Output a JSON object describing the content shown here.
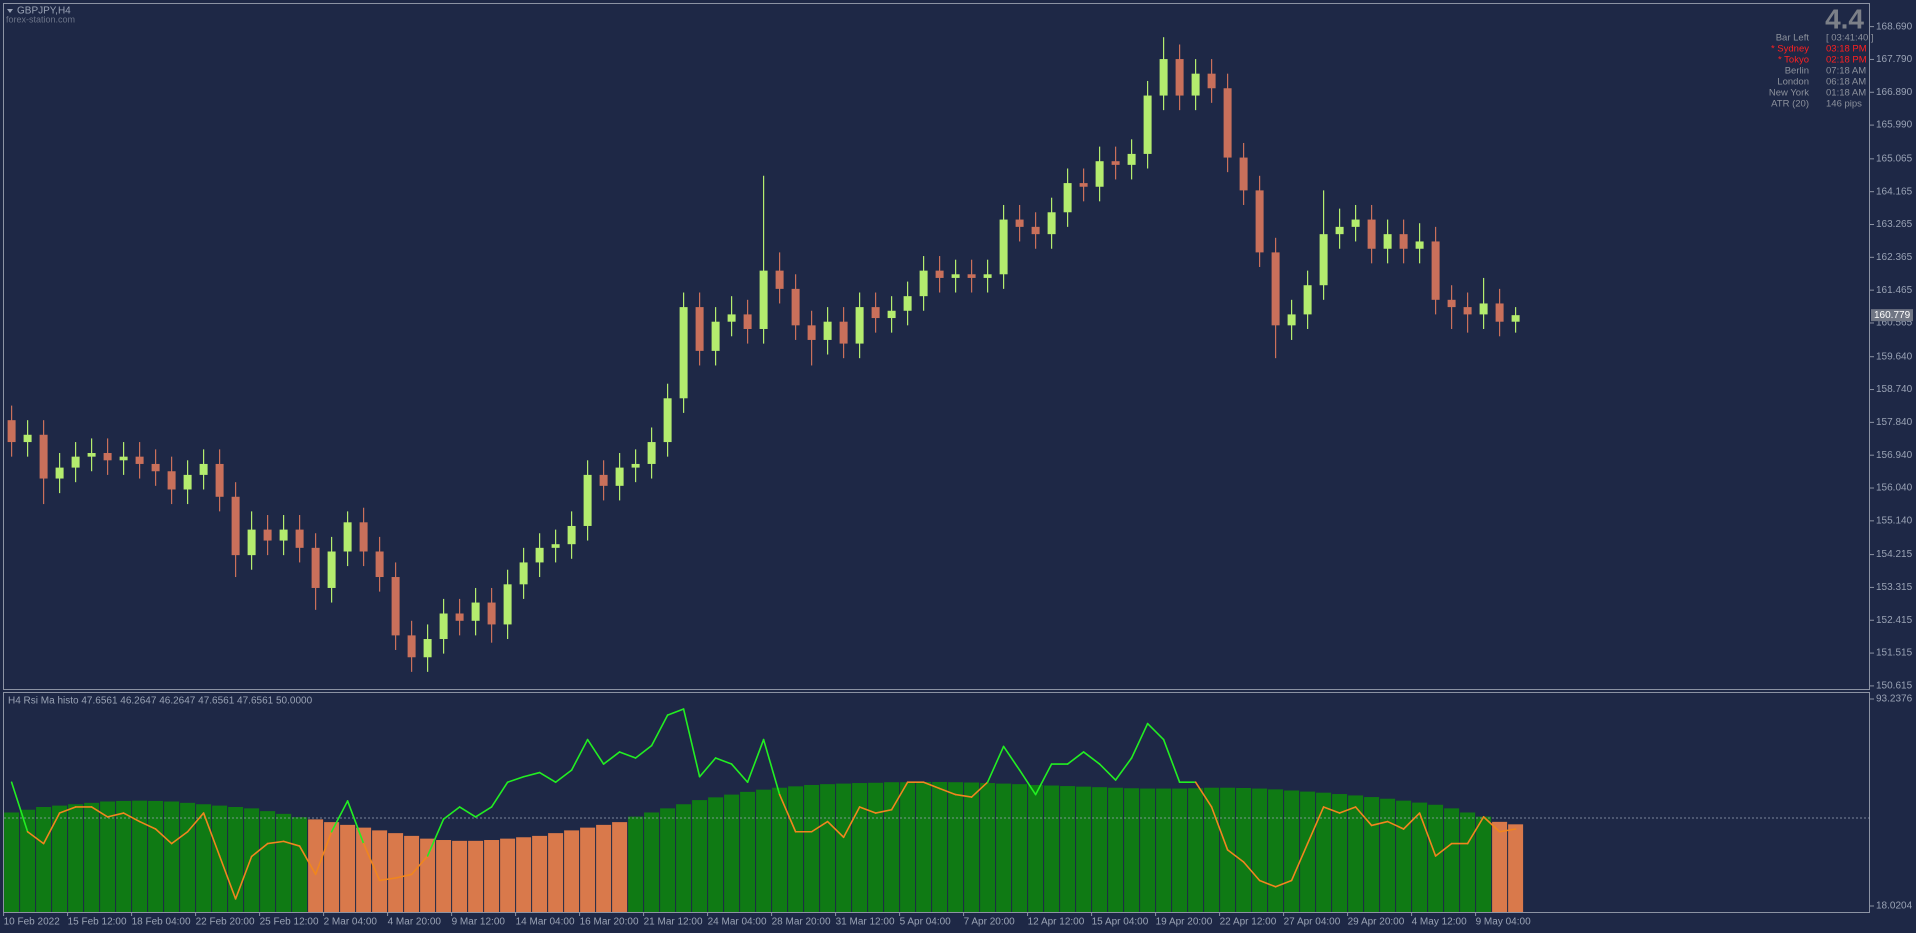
{
  "header": {
    "symbol": "GBPJPY,H4",
    "watermark": "forex-station.com"
  },
  "info": {
    "spread": 4.4,
    "rows": [
      {
        "label": "Bar Left",
        "value": "[ 03:41:40 ]",
        "color": "#8c919c"
      },
      {
        "label": "* Sydney",
        "value": "03:18 PM",
        "color": "#ff2020"
      },
      {
        "label": "* Tokyo",
        "value": "02:18 PM",
        "color": "#ff2020"
      },
      {
        "label": "Berlin",
        "value": "07:18 AM",
        "color": "#8c919c"
      },
      {
        "label": "London",
        "value": "06:18 AM",
        "color": "#8c919c"
      },
      {
        "label": "New York",
        "value": "01:18 AM",
        "color": "#8c919c"
      },
      {
        "label": "ATR (20)",
        "value": "146 pips",
        "color": "#8c919c"
      }
    ]
  },
  "chart_data": [
    {
      "type": "candlestick",
      "up_color": "#b4ec6e",
      "down_color": "#c9705b",
      "last_price": 160.779,
      "ylim": [
        150.53,
        169.31
      ],
      "yticks": [
        {
          "value": 168.69,
          "label": "168.690"
        },
        {
          "value": 167.79,
          "label": "167.790"
        },
        {
          "value": 166.89,
          "label": "166.890"
        },
        {
          "value": 165.99,
          "label": "165.990"
        },
        165.065,
        164.165,
        163.265,
        162.365,
        161.465,
        160.565,
        {
          "value": 159.64,
          "label": "159.640"
        },
        {
          "value": 158.74,
          "label": "158.740"
        },
        {
          "value": 157.84,
          "label": "157.840"
        },
        {
          "value": 156.94,
          "label": "156.940"
        },
        {
          "value": 156.04,
          "label": "156.040"
        },
        {
          "value": 155.14,
          "label": "155.140"
        },
        154.215,
        153.315,
        152.415,
        151.515,
        150.615
      ],
      "open": [
        157.9,
        157.3,
        157.5,
        156.3,
        156.6,
        156.9,
        157.0,
        156.8,
        156.9,
        156.7,
        156.5,
        156.0,
        156.4,
        156.7,
        155.8,
        154.2,
        154.9,
        154.6,
        154.9,
        154.4,
        153.3,
        154.3,
        155.1,
        154.3,
        153.6,
        152.0,
        151.4,
        151.9,
        152.6,
        152.4,
        152.9,
        152.3,
        153.4,
        154.0,
        154.4,
        154.5,
        155.0,
        156.4,
        156.1,
        156.6,
        156.7,
        157.3,
        158.5,
        161.0,
        159.8,
        160.6,
        160.8,
        160.4,
        162.0,
        161.5,
        160.5,
        160.1,
        160.6,
        160.0,
        161.0,
        160.7,
        160.9,
        161.3,
        162.0,
        161.8,
        161.9,
        161.8,
        161.9,
        163.4,
        163.2,
        163.0,
        163.6,
        164.4,
        164.3,
        165.0,
        164.9,
        165.2,
        166.8,
        167.8,
        166.8,
        167.4,
        167.0,
        165.1,
        164.2,
        162.5,
        160.5,
        160.8,
        161.6,
        163.0,
        163.2,
        163.4,
        162.6,
        163.0,
        162.6,
        162.8,
        161.2,
        161.0,
        160.8,
        161.1,
        160.6
      ],
      "high": [
        158.3,
        157.9,
        157.9,
        157.0,
        157.3,
        157.4,
        157.4,
        157.3,
        157.3,
        157.1,
        156.9,
        156.8,
        157.1,
        157.1,
        156.2,
        155.4,
        155.3,
        155.3,
        155.3,
        154.8,
        154.7,
        155.4,
        155.5,
        154.7,
        154.0,
        152.4,
        152.3,
        153.0,
        153.0,
        153.3,
        153.3,
        153.8,
        154.4,
        154.8,
        154.9,
        155.4,
        156.8,
        156.8,
        157.0,
        157.1,
        157.7,
        158.9,
        161.4,
        161.4,
        161.0,
        161.3,
        161.2,
        164.6,
        162.5,
        161.9,
        160.9,
        161.0,
        161.0,
        161.4,
        161.4,
        161.3,
        161.7,
        162.4,
        162.4,
        162.3,
        162.3,
        162.3,
        163.8,
        163.8,
        163.6,
        164.0,
        164.8,
        164.8,
        165.4,
        165.4,
        165.6,
        167.2,
        168.4,
        168.2,
        167.8,
        167.8,
        167.4,
        165.5,
        164.6,
        162.9,
        161.2,
        162.0,
        164.2,
        163.7,
        163.8,
        163.8,
        163.4,
        163.4,
        163.3,
        163.2,
        161.6,
        161.4,
        161.8,
        161.5,
        161.0
      ],
      "low": [
        156.9,
        156.9,
        155.6,
        155.9,
        156.2,
        156.5,
        156.4,
        156.4,
        156.3,
        156.1,
        155.6,
        155.6,
        156.0,
        155.4,
        153.6,
        153.8,
        154.2,
        154.2,
        154.0,
        152.7,
        152.9,
        153.9,
        153.9,
        153.2,
        151.6,
        151.0,
        151.0,
        151.5,
        152.0,
        152.0,
        151.8,
        151.9,
        153.0,
        153.6,
        154.0,
        154.1,
        154.6,
        155.7,
        155.7,
        156.2,
        156.3,
        156.9,
        158.1,
        159.4,
        159.4,
        160.2,
        160.0,
        160.0,
        161.1,
        160.1,
        159.4,
        159.7,
        159.6,
        159.6,
        160.3,
        160.3,
        160.5,
        160.9,
        161.4,
        161.4,
        161.4,
        161.4,
        161.5,
        162.8,
        162.6,
        162.6,
        163.2,
        163.9,
        163.9,
        164.5,
        164.5,
        164.8,
        166.4,
        166.4,
        166.4,
        166.6,
        164.7,
        163.8,
        162.1,
        159.6,
        160.1,
        160.4,
        161.2,
        162.6,
        162.8,
        162.2,
        162.2,
        162.2,
        162.2,
        160.8,
        160.4,
        160.3,
        160.4,
        160.2,
        160.3
      ],
      "close": [
        157.3,
        157.5,
        156.3,
        156.6,
        156.9,
        157.0,
        156.8,
        156.9,
        156.7,
        156.5,
        156.0,
        156.4,
        156.7,
        155.8,
        154.2,
        154.9,
        154.6,
        154.9,
        154.4,
        153.3,
        154.3,
        155.1,
        154.3,
        153.6,
        152.0,
        151.4,
        151.9,
        152.6,
        152.4,
        152.9,
        152.3,
        153.4,
        154.0,
        154.4,
        154.5,
        155.0,
        156.4,
        156.1,
        156.6,
        156.7,
        157.3,
        158.5,
        161.0,
        159.8,
        160.6,
        160.8,
        160.4,
        162.0,
        161.5,
        160.5,
        160.1,
        160.6,
        160.0,
        161.0,
        160.7,
        160.9,
        161.3,
        162.0,
        161.8,
        161.9,
        161.8,
        161.9,
        163.4,
        163.2,
        163.0,
        163.6,
        164.4,
        164.3,
        165.0,
        164.9,
        165.2,
        166.8,
        167.8,
        166.8,
        167.4,
        167.0,
        165.1,
        164.2,
        162.5,
        160.5,
        160.8,
        161.6,
        163.0,
        163.2,
        163.4,
        162.6,
        163.0,
        162.6,
        162.8,
        161.2,
        161.0,
        160.8,
        161.1,
        160.6,
        160.779
      ]
    },
    {
      "type": "rsi",
      "title": "H4 Rsi Ma histo 47.6561 46.2647 46.2647 47.6561 47.6561 50.0000",
      "ylim": [
        15.84,
        95.42
      ],
      "yticks": [
        93.2376,
        18.0204
      ],
      "level": 50,
      "categories": [
        "10 Feb 2022",
        null,
        null,
        null,
        "15 Feb 12:00",
        null,
        null,
        null,
        "18 Feb 04:00",
        null,
        null,
        null,
        "22 Feb 20:00",
        null,
        null,
        null,
        "25 Feb 12:00",
        null,
        null,
        null,
        "2 Mar 04:00",
        null,
        null,
        null,
        "4 Mar 20:00",
        null,
        null,
        null,
        "9 Mar 12:00",
        null,
        null,
        null,
        "14 Mar 04:00",
        null,
        null,
        null,
        "16 Mar 20:00",
        null,
        null,
        null,
        "21 Mar 12:00",
        null,
        null,
        null,
        "24 Mar 04:00",
        null,
        null,
        null,
        "28 Mar 20:00",
        null,
        null,
        null,
        "31 Mar 12:00",
        null,
        null,
        null,
        "5 Apr 04:00",
        null,
        null,
        null,
        "7 Apr 20:00",
        null,
        null,
        null,
        "12 Apr 12:00",
        null,
        null,
        null,
        "15 Apr 04:00",
        null,
        null,
        null,
        "19 Apr 20:00",
        null,
        null,
        null,
        "22 Apr 12:00",
        null,
        null,
        null,
        "27 Apr 04:00",
        null,
        null,
        null,
        "29 Apr 20:00",
        null,
        null,
        null,
        "4 May 12:00",
        null,
        null,
        null,
        "9 May 04:00",
        null,
        null
      ],
      "histogram": {
        "up_color": "#0f7a14",
        "down_color": "#d9794b",
        "values": [
          52,
          53,
          54,
          54.5,
          55,
          55.5,
          56,
          56.2,
          56.3,
          56.2,
          56,
          55.5,
          55,
          54.5,
          54,
          53.5,
          52.5,
          51.5,
          50.3,
          49.5,
          48.5,
          47.5,
          46.5,
          45.5,
          44.5,
          43.5,
          42.5,
          42,
          41.7,
          41.7,
          42,
          42.5,
          43,
          43.5,
          44.5,
          45.5,
          46.5,
          47.5,
          48.5,
          50.5,
          52,
          53.5,
          55,
          56.5,
          57.5,
          58.5,
          59.5,
          60.3,
          61,
          61.5,
          62,
          62.3,
          62.5,
          62.7,
          62.8,
          63,
          63,
          63.1,
          63.1,
          63,
          62.9,
          62.7,
          62.5,
          62.3,
          62,
          61.8,
          61.6,
          61.4,
          61.2,
          61,
          60.8,
          60.7,
          60.7,
          60.7,
          60.8,
          61,
          61,
          60.9,
          60.7,
          60.4,
          60,
          59.6,
          59.2,
          58.7,
          58.2,
          57.6,
          57,
          56.3,
          55.6,
          54.8,
          53.5,
          52,
          50.5,
          48.6,
          47.7
        ]
      },
      "line": {
        "up_color": "#22ee22",
        "down_color": "#f0861e",
        "values": [
          63,
          45,
          40.7,
          51.8,
          54,
          54,
          50.4,
          51.8,
          48.7,
          46,
          40.7,
          45,
          51.8,
          36.2,
          20.6,
          36,
          40.7,
          41.5,
          39.8,
          29.5,
          45,
          56.2,
          40.7,
          27.3,
          28.2,
          29.5,
          36.2,
          49.6,
          54,
          50.4,
          54,
          63,
          65,
          66.5,
          63,
          67.4,
          78.5,
          69.6,
          74,
          71.8,
          76.3,
          87.4,
          89.6,
          65,
          71.8,
          69.6,
          63,
          78.5,
          58.5,
          45,
          45,
          48.7,
          43,
          54,
          51.8,
          53,
          63,
          63,
          60.7,
          58.5,
          57.6,
          63,
          76,
          67.4,
          58.5,
          69.6,
          69.6,
          74,
          69.6,
          63.8,
          71.8,
          84.3,
          78.5,
          63,
          63,
          54,
          38.4,
          34,
          27.3,
          25,
          27.3,
          40.7,
          54,
          51.8,
          54,
          47.3,
          48.7,
          46,
          51.8,
          36.2,
          40.7,
          40.7,
          50.4,
          45,
          46
        ]
      }
    }
  ]
}
